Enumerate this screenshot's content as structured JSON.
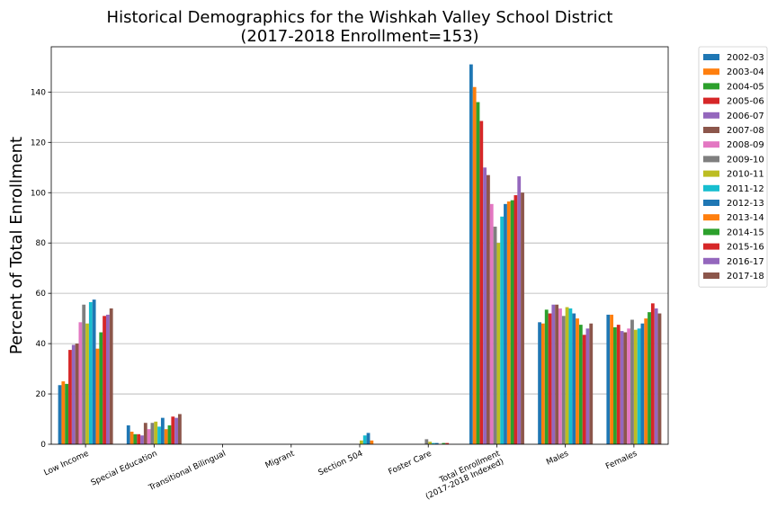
{
  "chart_data": {
    "type": "bar",
    "title": "Historical Demographics for the Wishkah Valley School District",
    "subtitle": "(2017-2018 Enrollment=153)",
    "xlabel": "",
    "ylabel": "Percent of Total Enrollment",
    "ylim": [
      0,
      158
    ],
    "yticks": [
      0,
      20,
      40,
      60,
      80,
      100,
      120,
      140
    ],
    "grid": true,
    "legend_position": "outside-right",
    "categories": [
      "Low Income",
      "Special Education",
      "Transitional Bilingual",
      "Migrant",
      "Section 504",
      "Foster Care",
      "Total Enrollment\n(2017-2018 Indexed)",
      "Males",
      "Females"
    ],
    "series": [
      {
        "name": "2002-03",
        "color": "#1f77b4",
        "values": [
          23.5,
          7.5,
          0,
          0,
          0,
          0,
          151,
          48.5,
          51.5
        ]
      },
      {
        "name": "2003-04",
        "color": "#ff7f0e",
        "values": [
          25,
          5,
          0,
          0,
          0,
          0,
          142,
          48,
          51.5
        ]
      },
      {
        "name": "2004-05",
        "color": "#2ca02c",
        "values": [
          24,
          4,
          0,
          0,
          0,
          0,
          136,
          53.5,
          46.5
        ]
      },
      {
        "name": "2005-06",
        "color": "#d62728",
        "values": [
          37.5,
          4,
          0,
          0,
          0,
          0,
          128.5,
          52,
          47.5
        ]
      },
      {
        "name": "2006-07",
        "color": "#9467bd",
        "values": [
          39.5,
          3.5,
          0,
          0,
          0,
          0,
          110,
          55.5,
          45
        ]
      },
      {
        "name": "2007-08",
        "color": "#8c564b",
        "values": [
          40,
          8.5,
          0,
          0,
          0,
          0,
          107,
          55.5,
          44.5
        ]
      },
      {
        "name": "2008-09",
        "color": "#e377c2",
        "values": [
          48.5,
          6,
          0,
          0,
          0,
          0,
          95.5,
          54,
          46
        ]
      },
      {
        "name": "2009-10",
        "color": "#7f7f7f",
        "values": [
          55.5,
          8.5,
          0,
          0,
          0,
          2,
          86.5,
          51,
          49.5
        ]
      },
      {
        "name": "2010-11",
        "color": "#bcbd22",
        "values": [
          48,
          9,
          0,
          0,
          1.5,
          1,
          80,
          54.5,
          45.5
        ]
      },
      {
        "name": "2011-12",
        "color": "#17becf",
        "values": [
          56.5,
          7,
          0,
          0,
          3.5,
          0.5,
          90.5,
          54,
          46
        ]
      },
      {
        "name": "2012-13",
        "color": "#1f77b4",
        "values": [
          57.5,
          10.5,
          0,
          0,
          4.5,
          0.5,
          95.5,
          52,
          48
        ]
      },
      {
        "name": "2013-14",
        "color": "#ff7f0e",
        "values": [
          38,
          6,
          0,
          0,
          1.5,
          0,
          96.5,
          50,
          50
        ]
      },
      {
        "name": "2014-15",
        "color": "#2ca02c",
        "values": [
          44.5,
          7.5,
          0,
          0,
          0,
          0.5,
          97,
          47.5,
          52.5
        ]
      },
      {
        "name": "2015-16",
        "color": "#d62728",
        "values": [
          51,
          11,
          0,
          0,
          0,
          0.5,
          99,
          43.5,
          56
        ]
      },
      {
        "name": "2016-17",
        "color": "#9467bd",
        "values": [
          51.5,
          10.5,
          0,
          0,
          0,
          0,
          106.5,
          46,
          54
        ]
      },
      {
        "name": "2017-18",
        "color": "#8c564b",
        "values": [
          54,
          12,
          0,
          0,
          0,
          0,
          100,
          48,
          52
        ]
      }
    ]
  }
}
